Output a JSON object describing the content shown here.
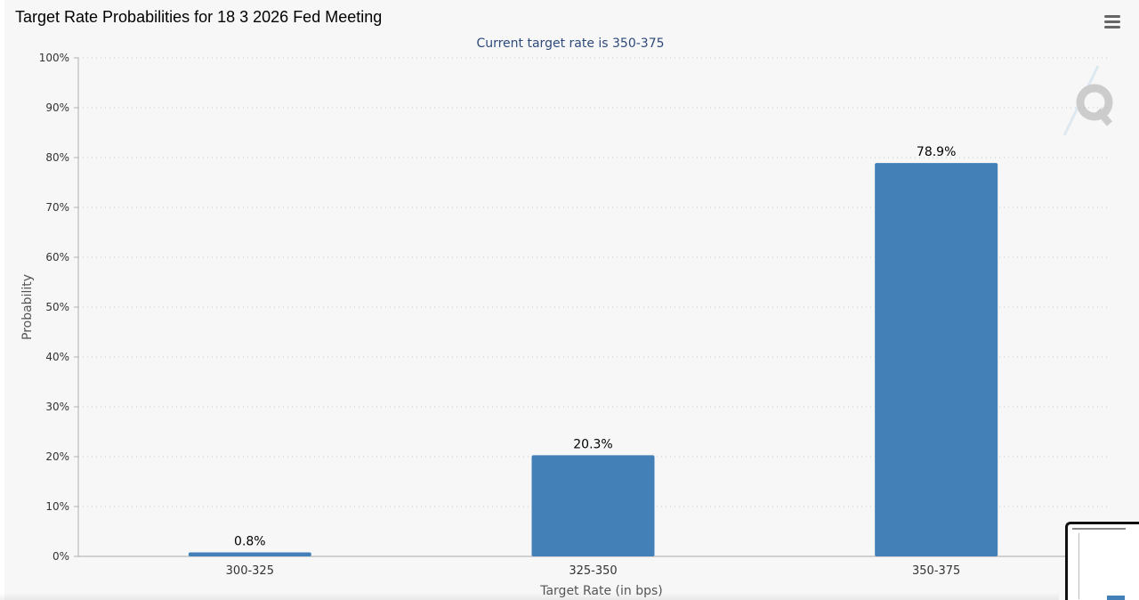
{
  "page": {
    "title": "Target Rate Probabilities for 18 3 2026 Fed Meeting",
    "menu_icon": "hamburger-menu-icon",
    "watermark_icon": "quikstrike-q-logo-icon"
  },
  "chart_data": {
    "type": "bar",
    "title": "Target Rate Probabilities for 18 3 2026 Fed Meeting",
    "subtitle": "Current target rate is 350-375",
    "xlabel": "Target Rate (in bps)",
    "ylabel": "Probability",
    "categories": [
      "300-325",
      "325-350",
      "350-375"
    ],
    "values": [
      0.8,
      20.3,
      78.9
    ],
    "data_labels": [
      "0.8%",
      "20.3%",
      "78.9%"
    ],
    "ylim": [
      0,
      100
    ],
    "y_ticks": [
      0,
      10,
      20,
      30,
      40,
      50,
      60,
      70,
      80,
      90,
      100
    ],
    "y_tick_labels": [
      "0%",
      "10%",
      "20%",
      "30%",
      "40%",
      "50%",
      "60%",
      "70%",
      "80%",
      "90%",
      "100%"
    ],
    "grid": "horizontal dotted",
    "legend": "none",
    "bar_color": "#4480b8"
  },
  "colors": {
    "bar": "#4480b8",
    "subtitle": "#2e4a7a",
    "axis_text": "#333333",
    "gridline": "#c8c8c8",
    "background": "#f7f7f7"
  }
}
